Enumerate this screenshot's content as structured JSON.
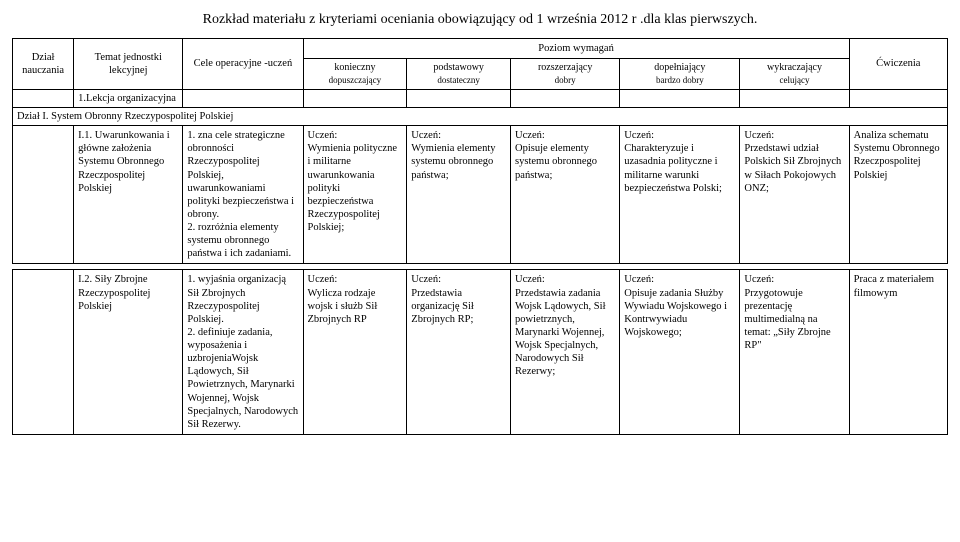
{
  "title": "Rozkład materiału z kryteriami oceniania obowiązujący od 1 września 2012 r .dla klas pierwszych.",
  "headers": {
    "dzial": "Dział nauczania",
    "temat": "Temat jednostki lekcyjnej",
    "cele": "Cele operacyjne -uczeń",
    "poziom": "Poziom wymagań",
    "cwiczenia": "Ćwiczenia",
    "konieczny": "konieczny",
    "konieczny_sub": "dopuszczający",
    "podstawowy": "podstawowy",
    "podstawowy_sub": "dostateczny",
    "rozszerzajacy": "rozszerzający",
    "rozszerzajacy_sub": "dobry",
    "dopelniajacy": "dopełniający",
    "dopelniajacy_sub": "bardzo dobry",
    "wykraczajacy": "wykraczający",
    "wykraczajacy_sub": "celujący"
  },
  "intro_row": {
    "temat": "1.Lekcja organizacyjna"
  },
  "section1": {
    "label": "Dział I. System Obronny Rzeczypospolitej Polskiej"
  },
  "row1": {
    "temat": "I.1. Uwarunkowania i główne założenia Systemu Obronnego Rzeczpospolitej Polskiej",
    "cele": "1. zna cele strategiczne obronności Rzeczypospolitej Polskiej, uwarunkowaniami polityki bezpieczeństwa i obrony.\n2. rozróżnia elementy systemu obronnego państwa i ich zadaniami.",
    "k": "Uczeń:\nWymienia polityczne i militarne uwarunkowania polityki bezpieczeństwa Rzeczypospolitej Polskiej;",
    "p": "Uczeń:\nWymienia elementy systemu obronnego państwa;",
    "r": "Uczeń:\nOpisuje elementy systemu obronnego państwa;",
    "d": "Uczeń:\nCharakteryzuje i uzasadnia polityczne i militarne warunki bezpieczeństwa Polski;",
    "w": "Uczeń:\nPrzedstawi udział Polskich Sił Zbrojnych w Siłach Pokojowych ONZ;",
    "cw": "Analiza schematu Systemu Obronnego Rzeczpospolitej Polskiej"
  },
  "row2": {
    "temat": "I.2. Siły Zbrojne Rzeczypospolitej Polskiej",
    "cele": "1. wyjaśnia organizacją Sił Zbrojnych Rzeczypospolitej Polskiej.\n2. definiuje  zadania, wyposażenia i uzbrojeniaWojsk Lądowych, Sił Powietrznych, Marynarki Wojennej, Wojsk Specjalnych, Narodowych Sił Rezerwy.",
    "k": "Uczeń:\nWylicza rodzaje wojsk i służb Sił Zbrojnych RP",
    "p": "Uczeń:\nPrzedstawia organizację Sił Zbrojnych RP;",
    "r": "Uczeń:\nPrzedstawia zadania Wojsk Lądowych, Sił powietrznych, Marynarki Wojennej, Wojsk Specjalnych, Narodowych Sił Rezerwy;",
    "d": "Uczeń:\nOpisuje zadania Służby Wywiadu Wojskowego i Kontrwywiadu Wojskowego;",
    "w": "Uczeń:\nPrzygotowuje prezentację multimedialną  na temat: „Siły Zbrojne RP\"",
    "cw": "Praca z materiałem filmowym"
  }
}
